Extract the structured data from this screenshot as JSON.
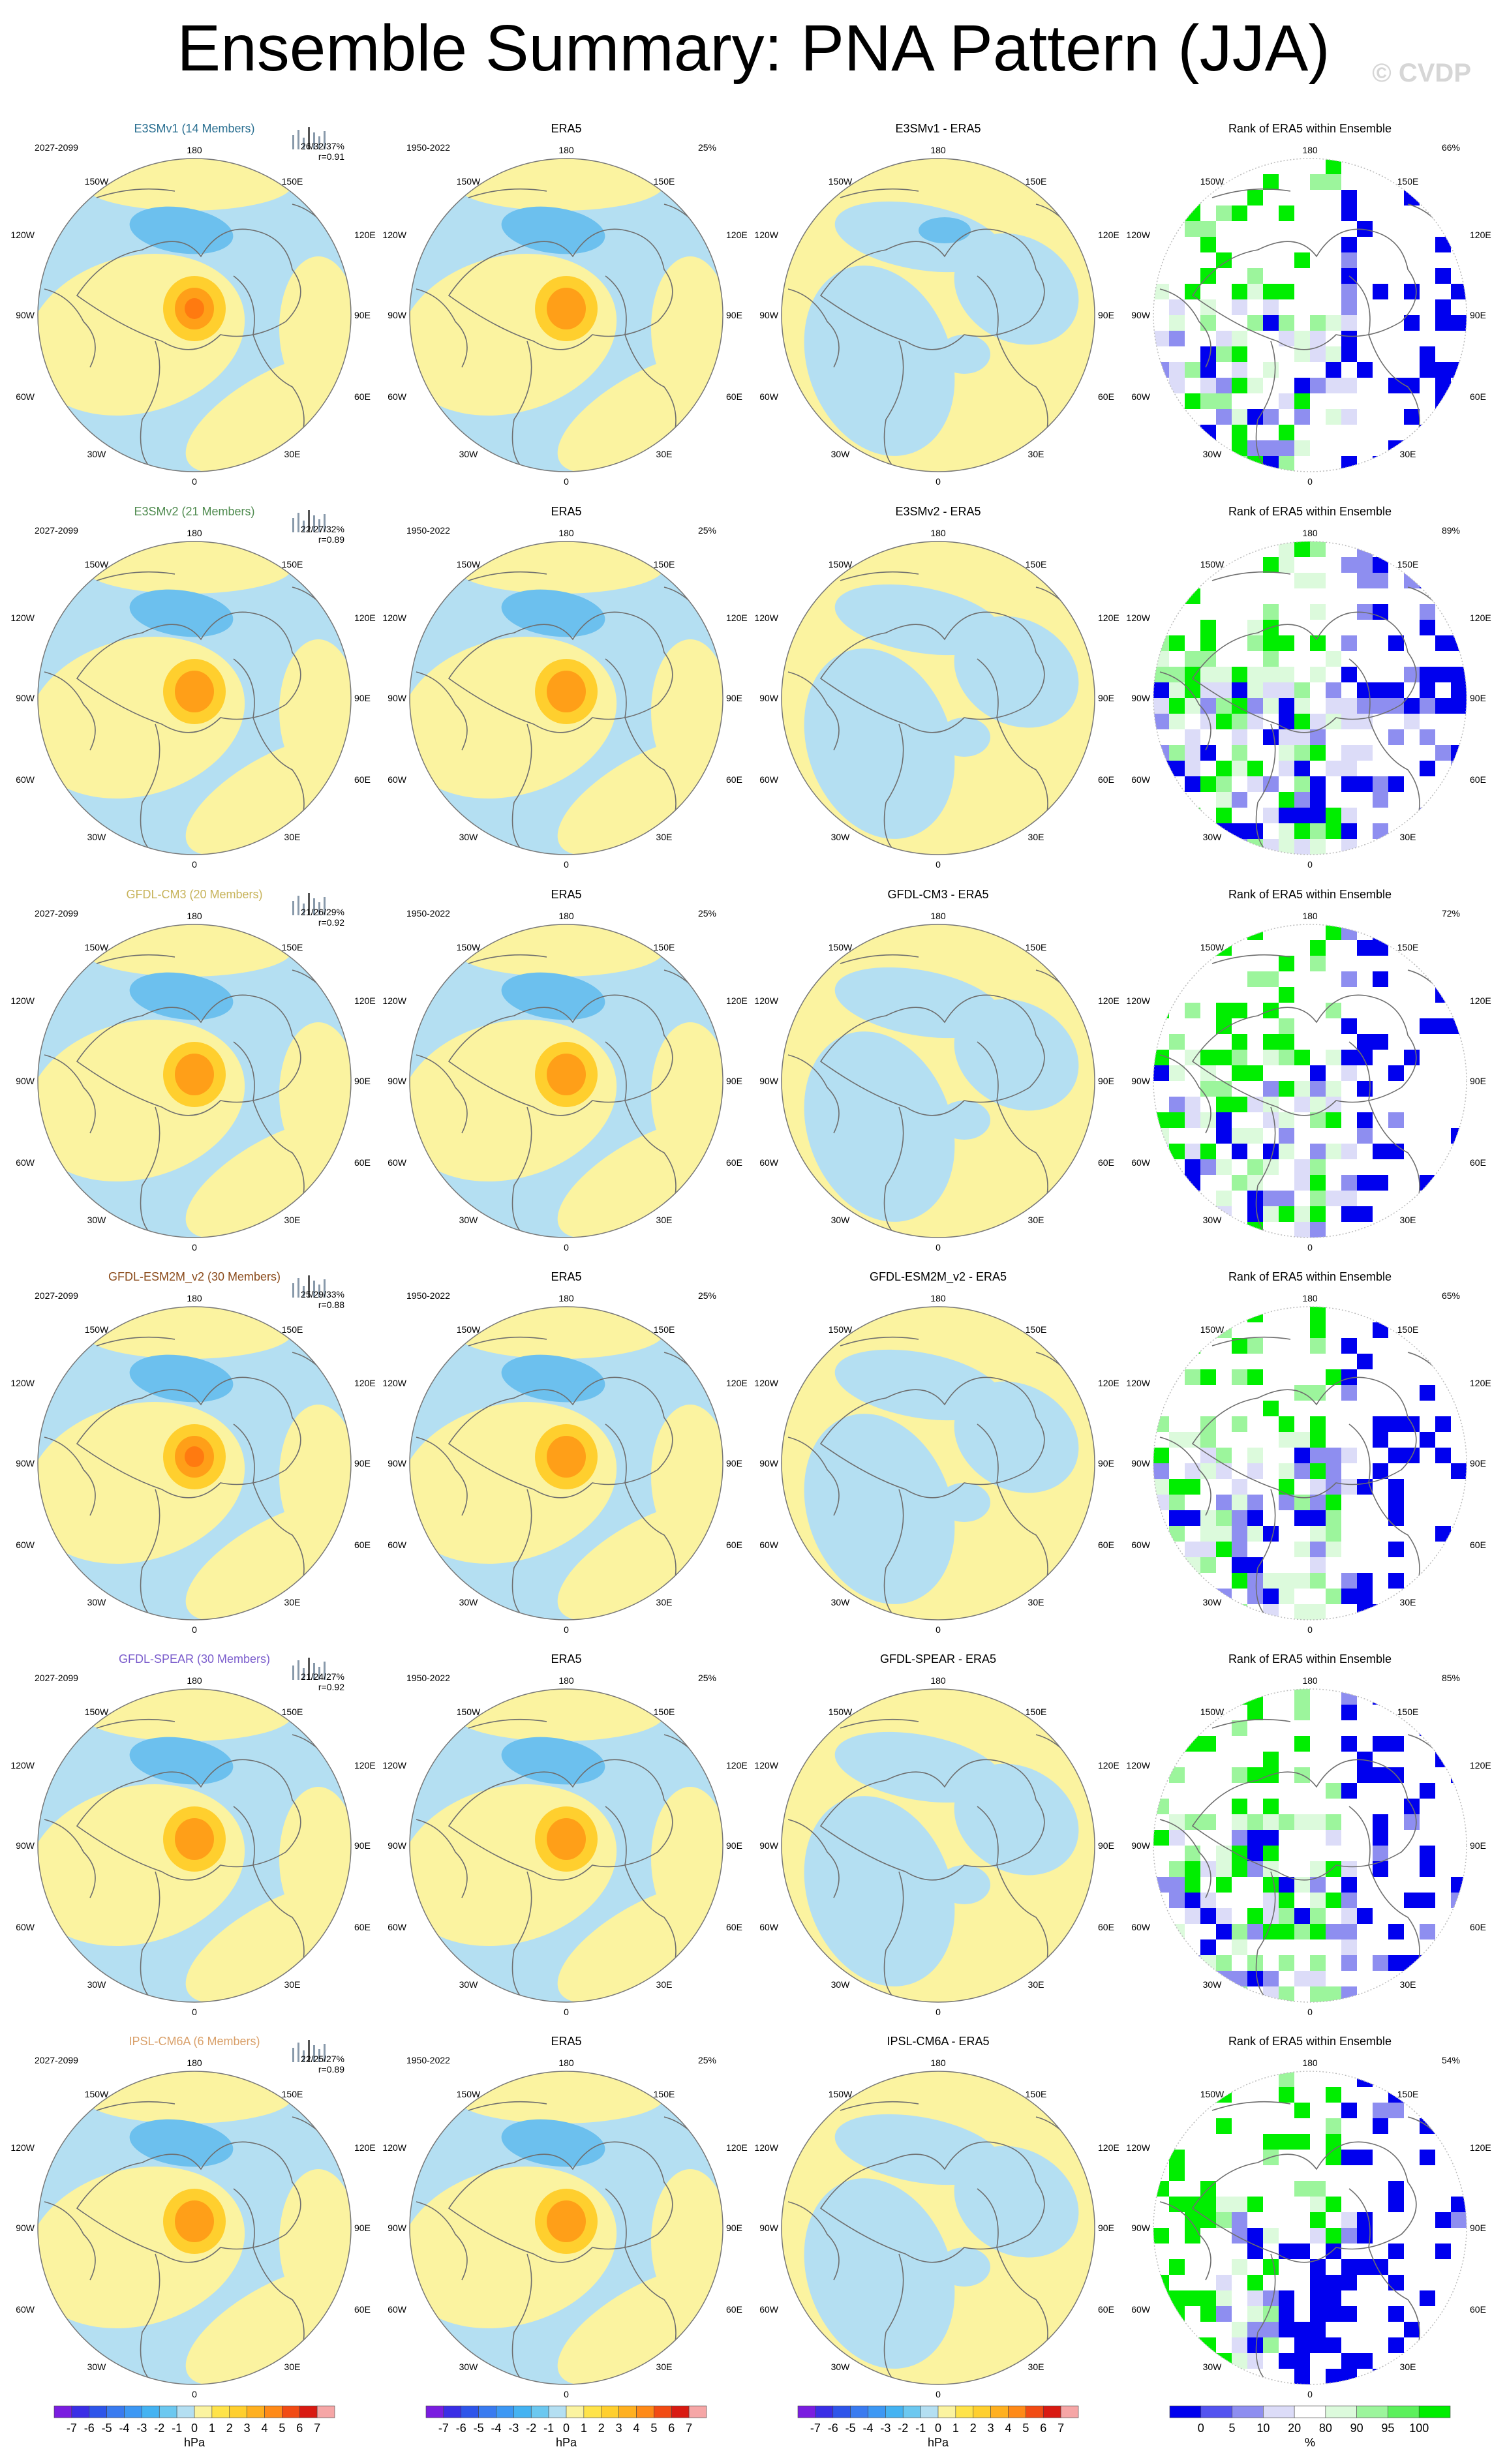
{
  "page": {
    "title": "Ensemble Summary: PNA Pattern (JJA)",
    "watermark": "© CVDP"
  },
  "colors": {
    "neg_fill": "#b4dff2",
    "pos_fill": "#fbf3a0",
    "neg_strong": "#6cc0ee",
    "neg_stronger": "#3aa4e6",
    "pos_strong": "#ffcf2e",
    "pos_stronger": "#ff9f18",
    "pos_strongest": "#ff7a10",
    "coast": "#6e6e6e",
    "rank_low_blue": "#0000ee",
    "rank_mid_blue": "#8e8ef0",
    "rank_light_blue": "#dcdcf8",
    "rank_light_green": "#dcfadc",
    "rank_mid_green": "#9cf59c",
    "rank_high_green": "#00ee00"
  },
  "map_labels": {
    "top": "180",
    "bottom": "0",
    "upper_left": "150W",
    "upper_right": "150E",
    "mid_upper_left": "120W",
    "mid_upper_right": "120E",
    "left": "90W",
    "right": "90E",
    "mid_lower_left": "60W",
    "mid_lower_right": "60E",
    "lower_left": "30W",
    "lower_right": "30E"
  },
  "chart_data": {
    "type": "map",
    "variable": "PNA Pattern",
    "season": "JJA",
    "units": "hPa",
    "rows": [
      {
        "model": "E3SMv1 (14 Members)",
        "model_color": "#2a6f91",
        "model_period": "2027-2099",
        "model_stats": "26/32/37%",
        "model_r": "r=0.91",
        "obs_title": "ERA5",
        "obs_period": "1950-2022",
        "obs_pct": "25%",
        "diff_title": "E3SMv1 - ERA5",
        "rank_title": "Rank of ERA5 within Ensemble",
        "rank_pct": "66%"
      },
      {
        "model": "E3SMv2 (21 Members)",
        "model_color": "#4f8b4f",
        "model_period": "2027-2099",
        "model_stats": "22/27/32%",
        "model_r": "r=0.89",
        "obs_title": "ERA5",
        "obs_period": "1950-2022",
        "obs_pct": "25%",
        "diff_title": "E3SMv2 - ERA5",
        "rank_title": "Rank of ERA5 within Ensemble",
        "rank_pct": "89%"
      },
      {
        "model": "GFDL-CM3 (20 Members)",
        "model_color": "#c7b35a",
        "model_period": "2027-2099",
        "model_stats": "21/26/29%",
        "model_r": "r=0.92",
        "obs_title": "ERA5",
        "obs_period": "1950-2022",
        "obs_pct": "25%",
        "diff_title": "GFDL-CM3 - ERA5",
        "rank_title": "Rank of ERA5 within Ensemble",
        "rank_pct": "72%"
      },
      {
        "model": "GFDL-ESM2M_v2 (30 Members)",
        "model_color": "#8a4a1a",
        "model_period": "2027-2099",
        "model_stats": "25/29/33%",
        "model_r": "r=0.88",
        "obs_title": "ERA5",
        "obs_period": "1950-2022",
        "obs_pct": "25%",
        "diff_title": "GFDL-ESM2M_v2 - ERA5",
        "rank_title": "Rank of ERA5 within Ensemble",
        "rank_pct": "65%"
      },
      {
        "model": "GFDL-SPEAR (30 Members)",
        "model_color": "#7a5ccc",
        "model_period": "2027-2099",
        "model_stats": "21/24/27%",
        "model_r": "r=0.92",
        "obs_title": "ERA5",
        "obs_period": "1950-2022",
        "obs_pct": "25%",
        "diff_title": "GFDL-SPEAR - ERA5",
        "rank_title": "Rank of ERA5 within Ensemble",
        "rank_pct": "85%"
      },
      {
        "model": "IPSL-CM6A (6 Members)",
        "model_color": "#d9a06a",
        "model_period": "2027-2099",
        "model_stats": "22/25/27%",
        "model_r": "r=0.89",
        "obs_title": "ERA5",
        "obs_period": "1950-2022",
        "obs_pct": "25%",
        "diff_title": "IPSL-CM6A - ERA5",
        "rank_title": "Rank of ERA5 within Ensemble",
        "rank_pct": "54%"
      }
    ],
    "hpa_colorbar": {
      "ticks": [
        "-7",
        "-6",
        "-5",
        "-4",
        "-3",
        "-2",
        "-1",
        "0",
        "1",
        "2",
        "3",
        "4",
        "5",
        "6",
        "7"
      ],
      "colors": [
        "#7a1de0",
        "#3a2ee6",
        "#2e55ea",
        "#3a7bf0",
        "#3d98f4",
        "#45b3f2",
        "#6cc8f0",
        "#b4dff2",
        "#fbf3a0",
        "#ffe34a",
        "#ffcf2e",
        "#ffb020",
        "#ff8a18",
        "#f24b14",
        "#d91a12",
        "#f6a6a6"
      ],
      "label": "hPa"
    },
    "rank_colorbar": {
      "ticks": [
        "0",
        "5",
        "10",
        "20",
        "80",
        "90",
        "95",
        "100"
      ],
      "colors": [
        "#0000ee",
        "#5353f0",
        "#8e8ef0",
        "#dcdcf8",
        "#ffffff",
        "#dcfadc",
        "#9cf59c",
        "#5cf05c",
        "#00ee00"
      ],
      "label": "%"
    }
  }
}
